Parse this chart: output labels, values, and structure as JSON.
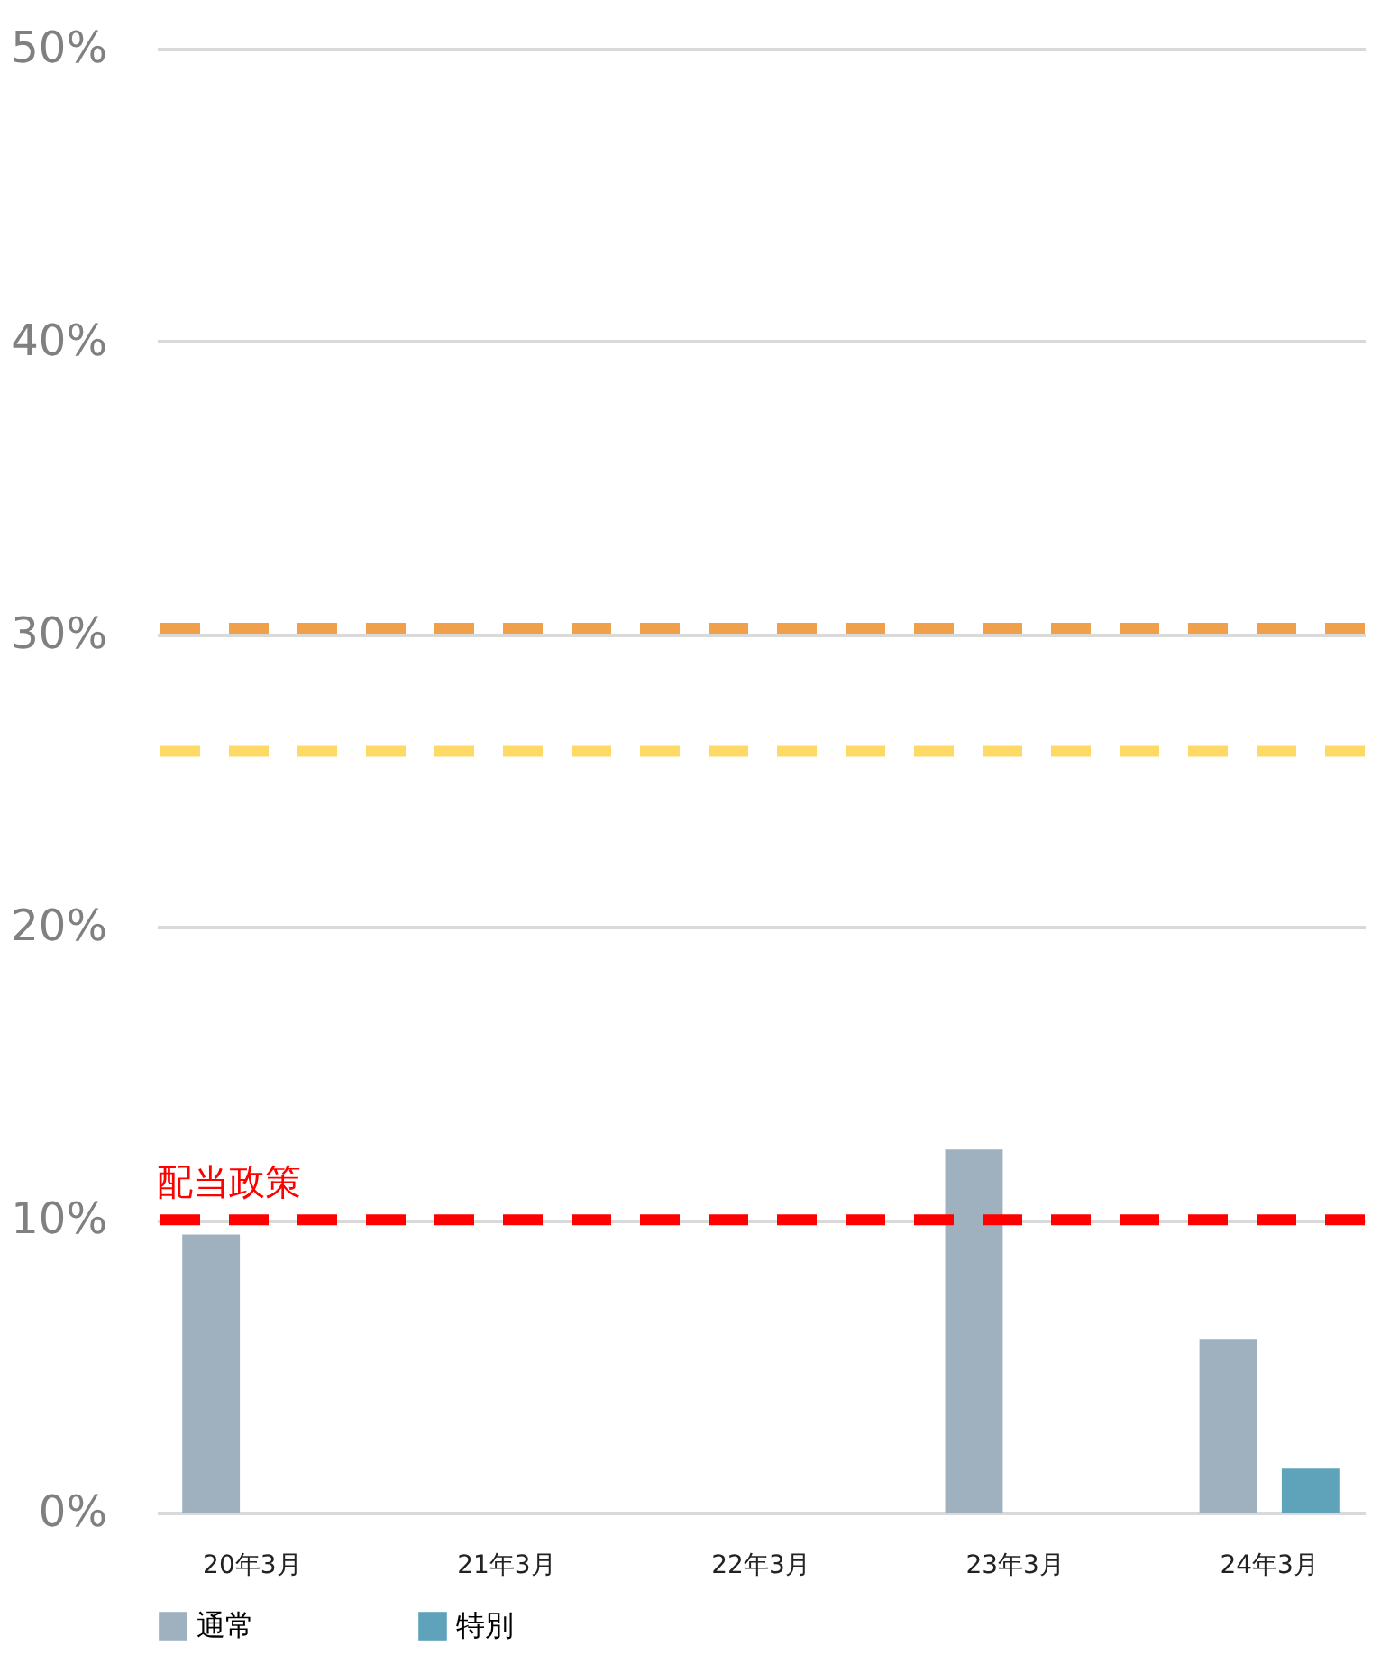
{
  "chart_data": {
    "type": "bar",
    "categories": [
      "20年3月",
      "21年3月",
      "22年3月",
      "23年3月",
      "24年3月"
    ],
    "series": [
      {
        "name": "通常",
        "color": "#9fb1bf",
        "values": [
          9.5,
          null,
          null,
          12.4,
          5.9
        ]
      },
      {
        "name": "特別",
        "color": "#5fa3ba",
        "values": [
          null,
          null,
          null,
          null,
          1.5
        ]
      }
    ],
    "ylim": [
      0,
      50
    ],
    "yticks": [
      {
        "value": 0,
        "label": "0%"
      },
      {
        "value": 10,
        "label": "10%"
      },
      {
        "value": 20,
        "label": "20%"
      },
      {
        "value": 30,
        "label": "30%"
      },
      {
        "value": 40,
        "label": "40%"
      },
      {
        "value": 50,
        "label": "50%"
      }
    ],
    "ref_lines": [
      {
        "axis": "y",
        "value": 30.2,
        "color": "#f0a04b",
        "line_style": "dashed"
      },
      {
        "axis": "y",
        "value": 26,
        "color": "#ffd966",
        "line_style": "dashed"
      },
      {
        "axis": "y",
        "value": 10,
        "color": "#ff0000",
        "line_style": "dashed",
        "label": "配当政策"
      }
    ],
    "grid": "y",
    "legend": "bottom"
  }
}
